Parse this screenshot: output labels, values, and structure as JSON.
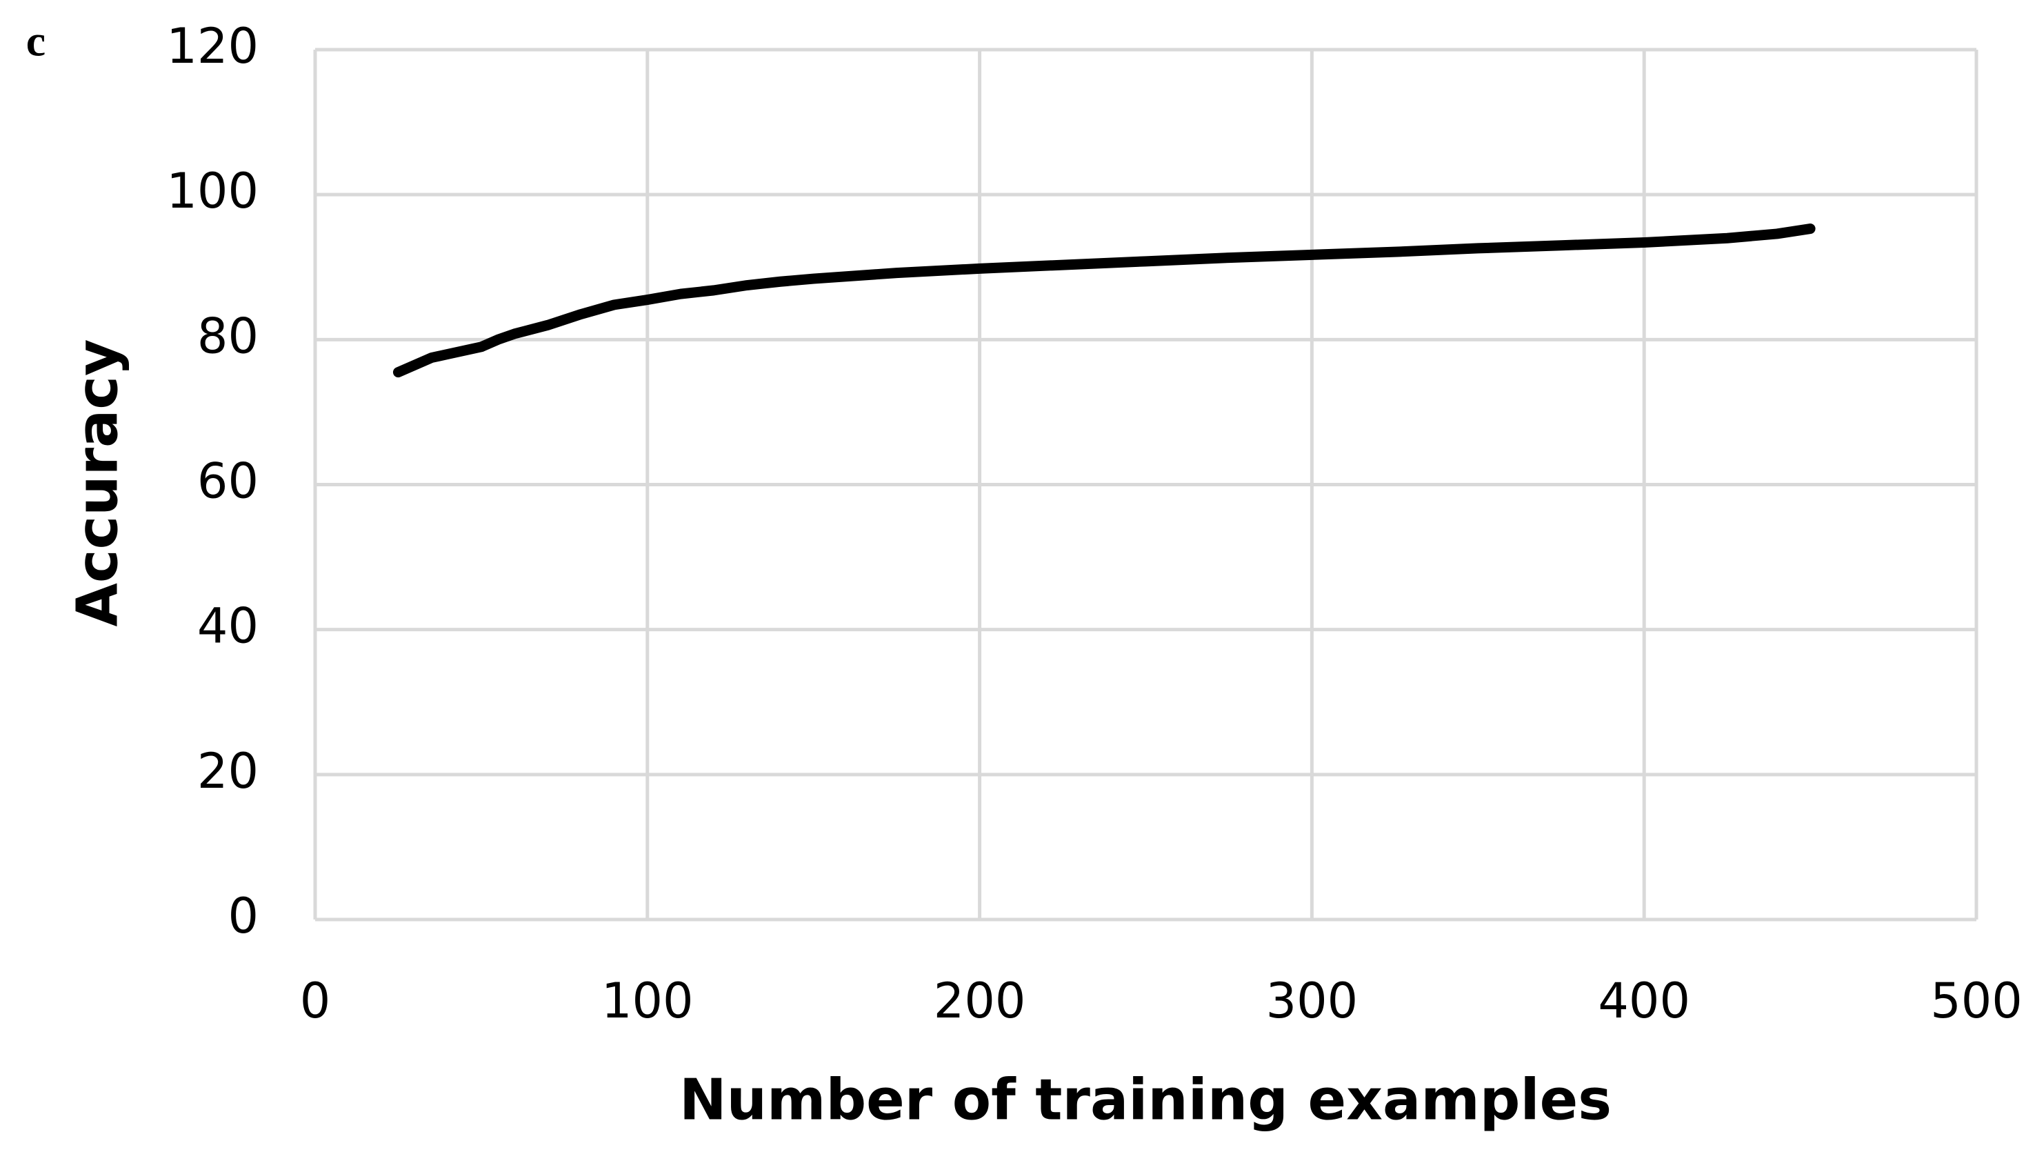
{
  "chart_data": {
    "type": "line",
    "panel_label": "c",
    "x_label": "Number of training examples",
    "y_label": "Accuracy",
    "x": [
      25,
      30,
      35,
      40,
      45,
      50,
      55,
      60,
      70,
      80,
      90,
      100,
      110,
      120,
      130,
      140,
      150,
      175,
      200,
      225,
      250,
      275,
      300,
      325,
      350,
      375,
      400,
      425,
      440,
      450
    ],
    "series": [
      {
        "color": "#000000",
        "values": [
          75.5,
          76.5,
          77.5,
          78,
          78.5,
          79,
          80,
          80.8,
          82,
          83.5,
          84.8,
          85.5,
          86.3,
          86.8,
          87.5,
          88,
          88.4,
          89.2,
          89.8,
          90.3,
          90.8,
          91.3,
          91.7,
          92.1,
          92.6,
          93,
          93.4,
          94,
          94.6,
          95.3
        ]
      }
    ],
    "xlim": [
      0,
      500
    ],
    "xticks": [
      0,
      100,
      200,
      300,
      400,
      500
    ],
    "ylim": [
      0,
      120
    ],
    "yticks": [
      0,
      20,
      40,
      60,
      80,
      100,
      120
    ],
    "grid": true
  }
}
